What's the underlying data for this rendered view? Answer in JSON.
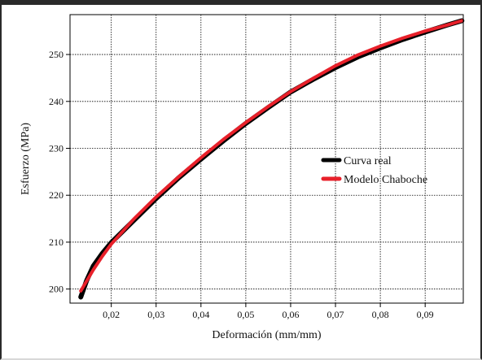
{
  "chart_data": {
    "type": "line",
    "title": "",
    "xlabel": "Deformación (mm/mm)",
    "ylabel": "Esfuerzo (MPa)",
    "xlim": [
      0.0108,
      0.0985
    ],
    "ylim": [
      197.0,
      258.5
    ],
    "xticks": [
      "0,02",
      "0,03",
      "0,04",
      "0,05",
      "0,06",
      "0,07",
      "0,08",
      "0,09"
    ],
    "xtick_values": [
      0.02,
      0.03,
      0.04,
      0.05,
      0.06,
      0.07,
      0.08,
      0.09
    ],
    "yticks": [
      "200",
      "210",
      "220",
      "230",
      "240",
      "250"
    ],
    "ytick_values": [
      200,
      210,
      220,
      230,
      240,
      250
    ],
    "grid": true,
    "legend_position": "right-middle",
    "series": [
      {
        "name": "Curva real",
        "color": "#000000",
        "x": [
          0.0132,
          0.0145,
          0.016,
          0.018,
          0.02,
          0.025,
          0.03,
          0.035,
          0.04,
          0.045,
          0.05,
          0.055,
          0.06,
          0.065,
          0.07,
          0.075,
          0.08,
          0.085,
          0.09,
          0.095,
          0.0982
        ],
        "y": [
          198.3,
          201.8,
          204.9,
          207.6,
          209.9,
          214.6,
          219.3,
          223.7,
          227.7,
          231.6,
          235.3,
          238.7,
          242.0,
          244.7,
          247.2,
          249.5,
          251.4,
          253.2,
          254.8,
          256.3,
          257.2
        ]
      },
      {
        "name": "Modelo Chaboche",
        "color": "#e8202a",
        "x": [
          0.0132,
          0.0145,
          0.016,
          0.018,
          0.02,
          0.025,
          0.03,
          0.035,
          0.04,
          0.045,
          0.05,
          0.055,
          0.06,
          0.065,
          0.07,
          0.075,
          0.08,
          0.085,
          0.09,
          0.095,
          0.0982
        ],
        "y": [
          199.6,
          201.7,
          204.1,
          207.0,
          209.6,
          214.9,
          219.6,
          223.9,
          228.0,
          231.9,
          235.5,
          238.9,
          242.1,
          244.9,
          247.6,
          249.9,
          251.8,
          253.5,
          255.0,
          256.3,
          257.2
        ]
      }
    ]
  }
}
